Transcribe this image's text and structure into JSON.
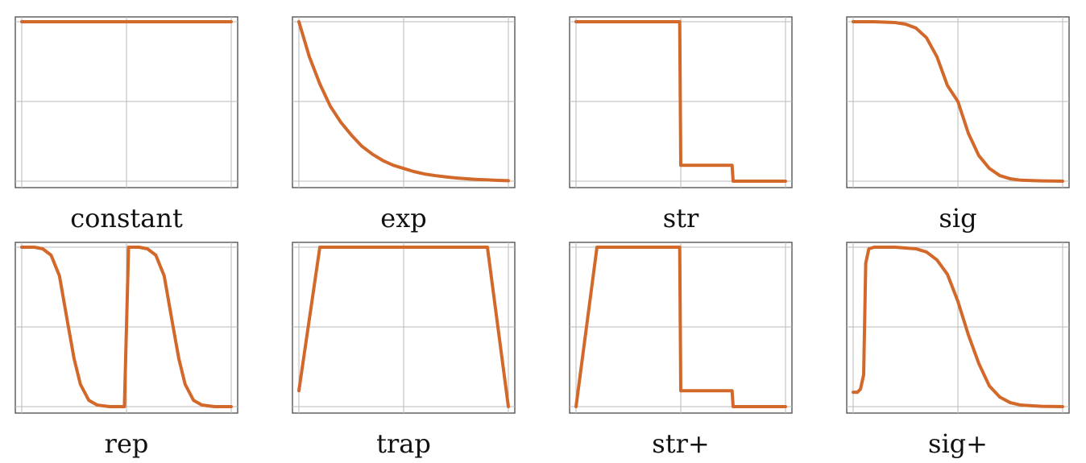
{
  "chart_data": [
    {
      "type": "line",
      "caption": "constant",
      "xlim": [
        0,
        1
      ],
      "ylim": [
        0,
        1
      ],
      "color": "#d2692a",
      "series": [
        {
          "x": [
            0,
            1
          ],
          "y": [
            1,
            1
          ]
        }
      ]
    },
    {
      "type": "line",
      "caption": "exp",
      "xlim": [
        0,
        1
      ],
      "ylim": [
        0,
        1
      ],
      "color": "#d2692a",
      "series": [
        {
          "x": [
            0,
            0.05,
            0.1,
            0.15,
            0.2,
            0.25,
            0.3,
            0.35,
            0.4,
            0.45,
            0.5,
            0.55,
            0.6,
            0.65,
            0.7,
            0.75,
            0.8,
            0.85,
            0.9,
            0.95,
            1
          ],
          "y": [
            1,
            0.78,
            0.61,
            0.47,
            0.37,
            0.29,
            0.22,
            0.17,
            0.13,
            0.1,
            0.08,
            0.06,
            0.045,
            0.035,
            0.027,
            0.02,
            0.015,
            0.011,
            0.008,
            0.005,
            0.003
          ]
        }
      ]
    },
    {
      "type": "line",
      "caption": "str",
      "xlim": [
        0,
        1
      ],
      "ylim": [
        0,
        1
      ],
      "color": "#d2692a",
      "series": [
        {
          "x": [
            0,
            0.495,
            0.5,
            0.745,
            0.75,
            1
          ],
          "y": [
            1,
            1,
            0.1,
            0.1,
            0,
            0
          ]
        }
      ]
    },
    {
      "type": "line",
      "caption": "sig",
      "xlim": [
        0,
        1
      ],
      "ylim": [
        0,
        1
      ],
      "color": "#d2692a",
      "series": [
        {
          "x": [
            0,
            0.1,
            0.2,
            0.25,
            0.3,
            0.35,
            0.4,
            0.45,
            0.5,
            0.55,
            0.6,
            0.65,
            0.7,
            0.75,
            0.8,
            0.9,
            1
          ],
          "y": [
            1,
            1,
            0.995,
            0.985,
            0.96,
            0.9,
            0.78,
            0.6,
            0.5,
            0.3,
            0.16,
            0.08,
            0.035,
            0.015,
            0.006,
            0.002,
            0
          ]
        }
      ]
    },
    {
      "type": "line",
      "caption": "rep",
      "xlim": [
        0,
        1
      ],
      "ylim": [
        0,
        1
      ],
      "color": "#d2692a",
      "series": [
        {
          "x": [
            0,
            0.06,
            0.1,
            0.14,
            0.18,
            0.22,
            0.25,
            0.28,
            0.32,
            0.36,
            0.42,
            0.49,
            0.5,
            0.51,
            0.56,
            0.6,
            0.64,
            0.68,
            0.72,
            0.75,
            0.78,
            0.82,
            0.86,
            0.92,
            1
          ],
          "y": [
            1,
            1,
            0.99,
            0.95,
            0.82,
            0.52,
            0.3,
            0.14,
            0.04,
            0.01,
            0,
            0,
            0.5,
            1,
            1,
            0.99,
            0.95,
            0.82,
            0.52,
            0.3,
            0.14,
            0.04,
            0.01,
            0,
            0
          ]
        }
      ]
    },
    {
      "type": "line",
      "caption": "trap",
      "xlim": [
        0,
        1
      ],
      "ylim": [
        0,
        1
      ],
      "color": "#d2692a",
      "series": [
        {
          "x": [
            0,
            0.1,
            0.9,
            1
          ],
          "y": [
            0.1,
            1,
            1,
            0
          ]
        }
      ]
    },
    {
      "type": "line",
      "caption": "str+",
      "xlim": [
        0,
        1
      ],
      "ylim": [
        0,
        1
      ],
      "color": "#d2692a",
      "series": [
        {
          "x": [
            0,
            0.1,
            0.495,
            0.5,
            0.745,
            0.75,
            1
          ],
          "y": [
            0,
            1,
            1,
            0.1,
            0.1,
            0,
            0
          ]
        }
      ]
    },
    {
      "type": "line",
      "caption": "sig+",
      "xlim": [
        0,
        1
      ],
      "ylim": [
        0,
        1
      ],
      "color": "#d2692a",
      "series": [
        {
          "x": [
            0,
            0.02,
            0.035,
            0.05,
            0.06,
            0.075,
            0.1,
            0.2,
            0.3,
            0.35,
            0.4,
            0.45,
            0.5,
            0.55,
            0.6,
            0.65,
            0.7,
            0.75,
            0.8,
            0.9,
            1
          ],
          "y": [
            0.09,
            0.09,
            0.11,
            0.2,
            0.9,
            0.99,
            1,
            1,
            0.99,
            0.97,
            0.92,
            0.83,
            0.66,
            0.45,
            0.27,
            0.13,
            0.06,
            0.025,
            0.01,
            0.002,
            0
          ]
        }
      ]
    }
  ]
}
